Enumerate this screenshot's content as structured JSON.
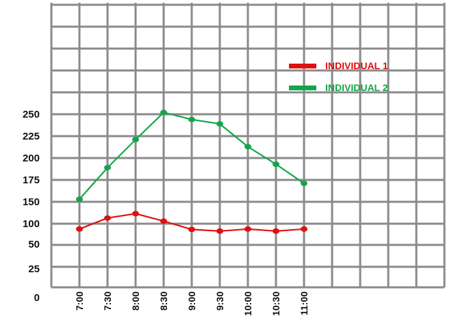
{
  "chart_data": {
    "type": "line",
    "categories": [
      "7:00",
      "7:30",
      "8:00",
      "8:30",
      "9:00",
      "9:30",
      "10:00",
      "10:30",
      "11:00"
    ],
    "y_ticks": [
      "0",
      "25",
      "50",
      "100",
      "150",
      "175",
      "200",
      "225",
      "250"
    ],
    "series": [
      {
        "name": "INDIVIDUAL 1",
        "color": "#e01010",
        "values": [
          87,
          113,
          123,
          106,
          86,
          82,
          87,
          82,
          87
        ]
      },
      {
        "name": "INDIVIDUAL 2",
        "color": "#12a64a",
        "values": [
          153,
          189,
          221,
          252,
          244,
          239,
          213,
          193,
          171
        ]
      }
    ],
    "legend_position": "top-right",
    "grid": true
  }
}
